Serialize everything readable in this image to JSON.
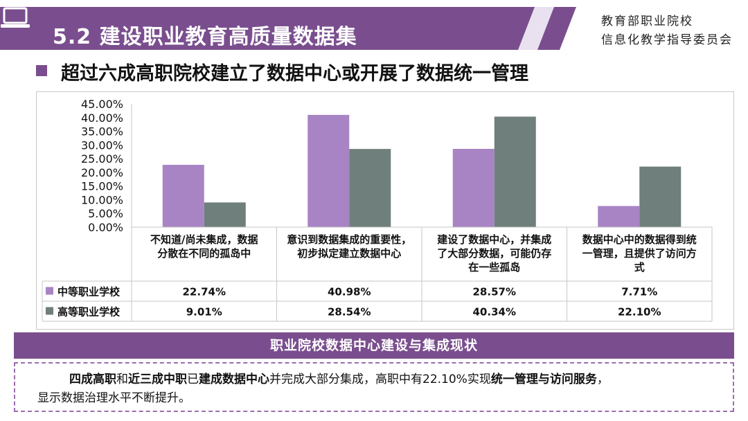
{
  "header": {
    "title": "5.2 建设职业教育高质量数据集",
    "org_line1": "教育部职业院校",
    "org_line2": "信息化教学指导委员会"
  },
  "subtitle": "超过六成高职院校建立了数据中心或开展了数据统一管理",
  "colors": {
    "accent": "#7a4e8e",
    "series1": "#a884c4",
    "series2": "#6f7f7c"
  },
  "chart_data": {
    "type": "bar",
    "categories": [
      [
        "不知道/尚未集成，数据",
        "分散在不同的孤岛中"
      ],
      [
        "意识到数据集成的重要性，",
        "初步拟定建立数据中心"
      ],
      [
        "建设了数据中心，并集成",
        "了大部分数据，可能仍存",
        "在一些孤岛"
      ],
      [
        "数据中心中的数据得到统",
        "一管理，且提供了访问方",
        "式"
      ]
    ],
    "series": [
      {
        "name": "中等职业学校",
        "values": [
          22.74,
          40.98,
          28.57,
          7.71
        ],
        "labels": [
          "22.74%",
          "40.98%",
          "28.57%",
          "7.71%"
        ]
      },
      {
        "name": "高等职业学校",
        "values": [
          9.01,
          28.54,
          40.34,
          22.1
        ],
        "labels": [
          "9.01%",
          "28.54%",
          "40.34%",
          "22.10%"
        ]
      }
    ],
    "yticks": [
      "0.00%",
      "5.00%",
      "10.00%",
      "15.00%",
      "20.00%",
      "25.00%",
      "30.00%",
      "35.00%",
      "40.00%",
      "45.00%"
    ],
    "ylim": [
      0,
      45
    ],
    "legend": "data-table",
    "grid": false
  },
  "section_title": "职业院校数据中心建设与集成现状",
  "summary": {
    "p1": "四成高职",
    "p2": "和",
    "p3": "近三成中职",
    "p4": "已",
    "p5": "建成数据中心",
    "p6": "并完成大部分集成，高职中有22.10%实现",
    "p7": "统一管理与访问服务",
    "p8": "，",
    "p9": "显示数据治理水平不断提升。"
  }
}
